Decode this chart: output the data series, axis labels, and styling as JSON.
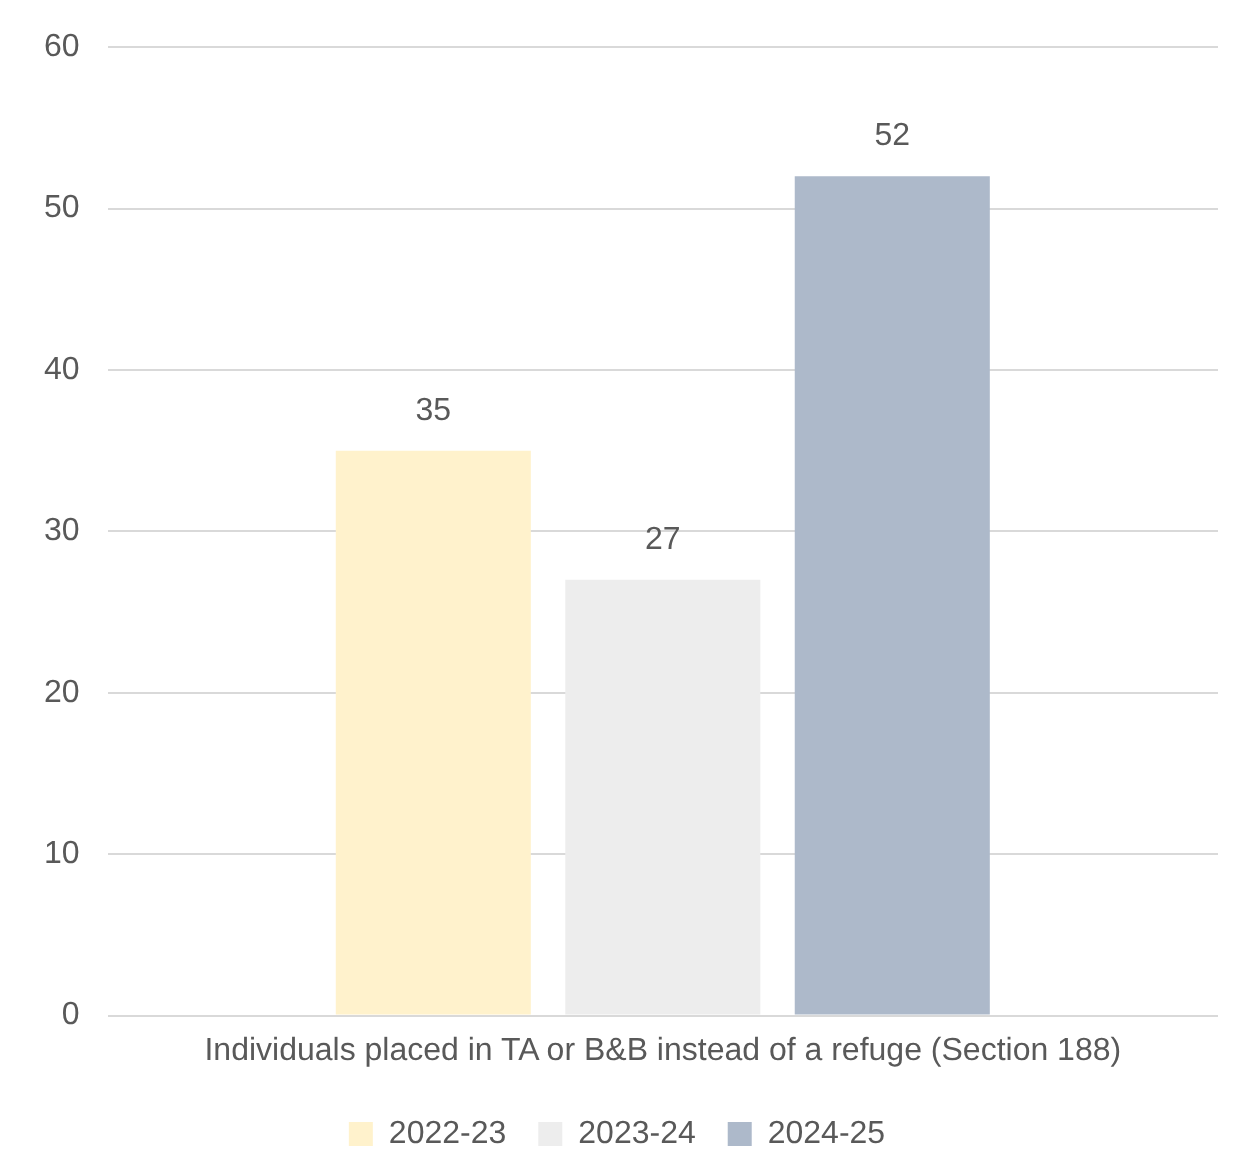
{
  "chart_data": {
    "type": "bar",
    "categories": [
      "Individuals placed in TA or B&B instead of a refuge (Section 188)"
    ],
    "series": [
      {
        "name": "2022-23",
        "color": "#fff2cc",
        "values": [
          35
        ]
      },
      {
        "name": "2023-24",
        "color": "#ededed",
        "values": [
          27
        ]
      },
      {
        "name": "2024-25",
        "color": "#adb9ca",
        "values": [
          52
        ]
      }
    ],
    "ylim": [
      0,
      60
    ],
    "yticks": [
      0,
      10,
      20,
      30,
      40,
      50,
      60
    ],
    "grid": "y",
    "legend": "bottom",
    "data_labels": true
  }
}
